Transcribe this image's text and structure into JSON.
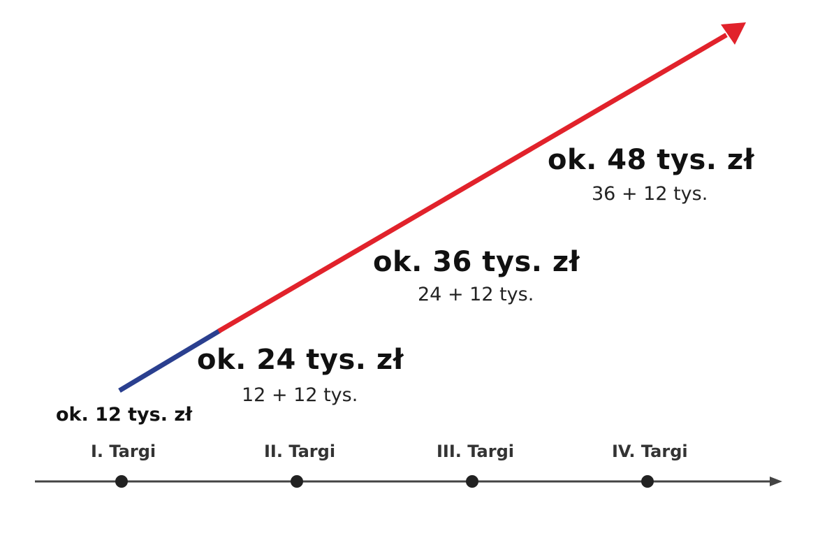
{
  "colors": {
    "blue_segment": "#2a3f8f",
    "red_arrow": "#e1222b",
    "timeline": "#444444",
    "text": "#111111"
  },
  "start_label": "ok. 12 tys. zł",
  "milestones": [
    {
      "amount": "ok. 24 tys. zł",
      "breakdown": "12 + 12 tys."
    },
    {
      "amount": "ok. 36 tys. zł",
      "breakdown": "24 + 12 tys."
    },
    {
      "amount": "ok. 48 tys. zł",
      "breakdown": "36 + 12 tys."
    }
  ],
  "timeline": {
    "stages": [
      "I. Targi",
      "II. Targi",
      "III. Targi",
      "IV. Targi"
    ]
  }
}
